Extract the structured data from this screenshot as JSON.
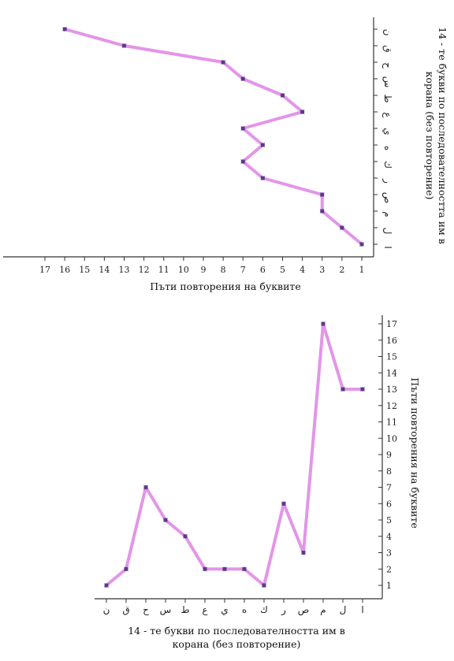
{
  "chart_data": [
    {
      "type": "line",
      "orientation": "rotated",
      "categories": [
        "ا",
        "ل",
        "م",
        "ص",
        "ر",
        "ك",
        "ه",
        "ي",
        "ع",
        "ط",
        "س",
        "ح",
        "ق",
        "ن"
      ],
      "values": [
        1,
        2,
        3,
        3,
        6,
        7,
        6,
        7,
        4,
        5,
        7,
        8,
        13,
        16
      ],
      "repetition_axis_label": "Пъти повторения на буквите",
      "letters_axis_label": "14 - те букви по последователността им в корана (без повторение)",
      "ticks": [
        1,
        2,
        3,
        4,
        5,
        6,
        7,
        8,
        9,
        10,
        11,
        12,
        13,
        14,
        15,
        16,
        17
      ],
      "range": [
        1,
        17
      ],
      "line_color": "#e08ae6",
      "marker_color": "#5a3a8a"
    },
    {
      "type": "line",
      "categories": [
        "ا",
        "ل",
        "م",
        "ص",
        "ر",
        "ك",
        "ه",
        "ي",
        "ع",
        "ط",
        "س",
        "ح",
        "ق",
        "ن"
      ],
      "values": [
        13,
        13,
        17,
        3,
        6,
        1,
        2,
        2,
        2,
        4,
        5,
        7,
        2,
        1
      ],
      "ylabel": "Пъти повторения на буквите",
      "xlabel": "14 - те букви по последователността им в корана (без повторение)",
      "yticks": [
        1,
        2,
        3,
        4,
        5,
        6,
        7,
        8,
        9,
        10,
        11,
        12,
        13,
        14,
        15,
        16,
        17
      ],
      "ylim": [
        1,
        17
      ],
      "line_color": "#e08ae6",
      "marker_color": "#5a3a8a"
    }
  ]
}
